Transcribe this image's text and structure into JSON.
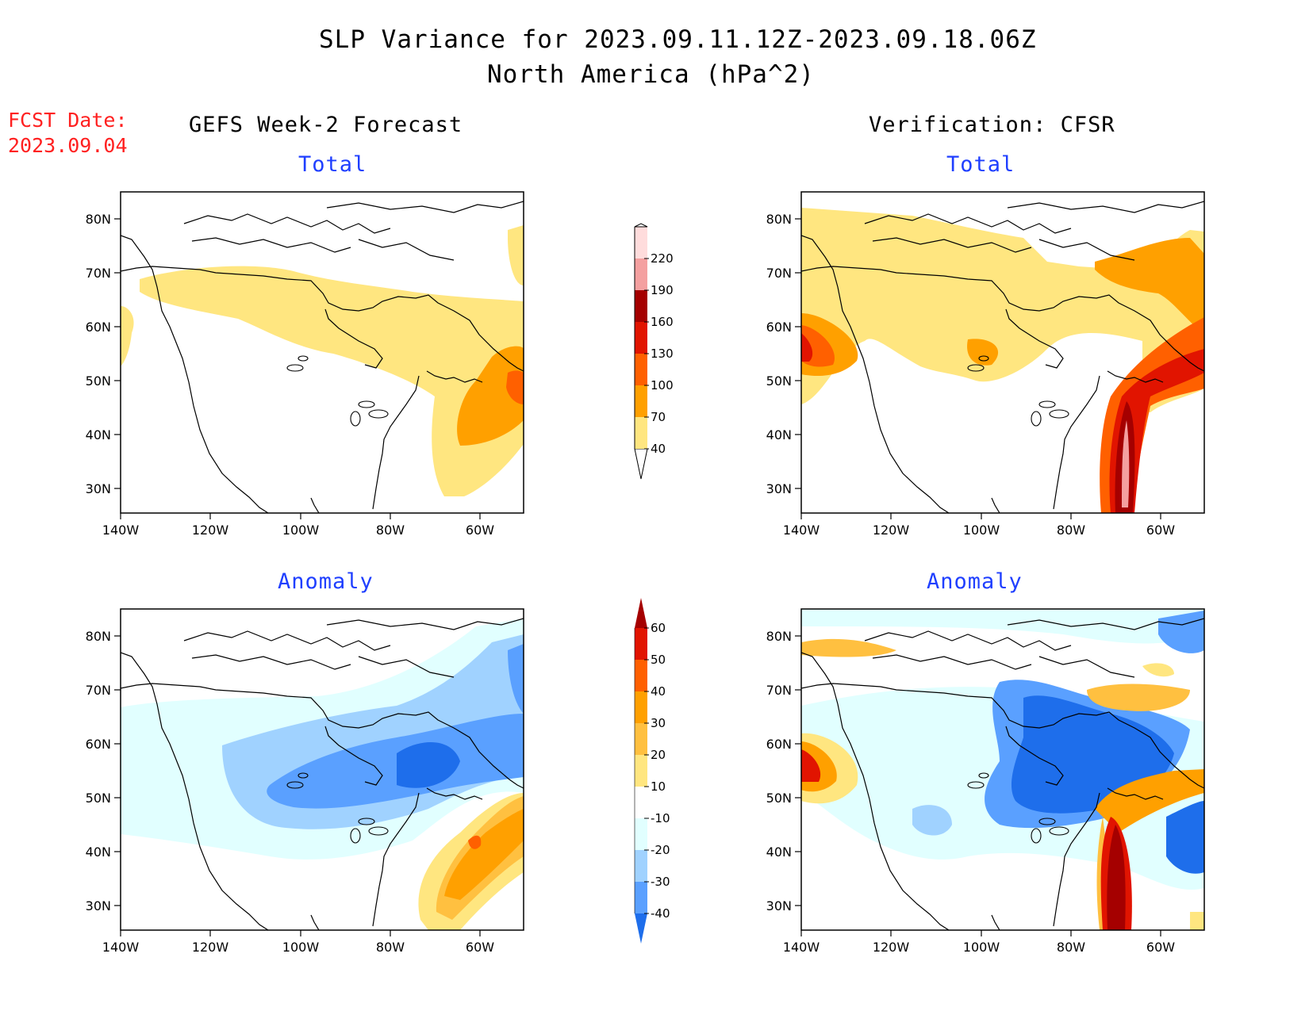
{
  "header": {
    "title": "SLP Variance for 2023.09.11.12Z-2023.09.18.06Z",
    "subtitle": "North America (hPa^2)",
    "fcst_label": "FCST Date:",
    "fcst_date": "2023.09.04"
  },
  "columns": {
    "left": "GEFS Week-2 Forecast",
    "right": "Verification: CFSR"
  },
  "panels": {
    "top_left": "Total",
    "top_right": "Total",
    "bottom_left": "Anomaly",
    "bottom_right": "Anomaly"
  },
  "axes": {
    "lat_labels": [
      "80N",
      "70N",
      "60N",
      "50N",
      "40N",
      "30N"
    ],
    "lon_labels": [
      "140W",
      "120W",
      "100W",
      "80W",
      "60W"
    ]
  },
  "colorbars": {
    "total": {
      "levels": [
        "40",
        "70",
        "100",
        "130",
        "160",
        "190",
        "220"
      ],
      "colors": [
        "#ffe680",
        "#ffa000",
        "#ff6000",
        "#e11400",
        "#a50000",
        "#f4a0a0",
        "#ffdcdc"
      ]
    },
    "anomaly": {
      "levels": [
        "60",
        "50",
        "40",
        "30",
        "20",
        "10",
        "-10",
        "-20",
        "-30",
        "-40"
      ],
      "colors": [
        "#a50000",
        "#e11400",
        "#ff6000",
        "#ffa000",
        "#ffc040",
        "#ffe680",
        "#ffffff",
        "#e1ffff",
        "#a0d2ff",
        "#5aa0ff",
        "#1e6eeb"
      ]
    }
  },
  "colors": {
    "title_red": "#ff2020",
    "panel_title_blue": "#1f3fff"
  }
}
